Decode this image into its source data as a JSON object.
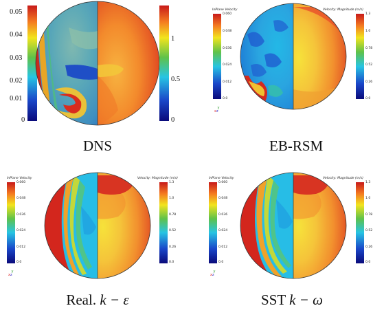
{
  "panels": [
    {
      "id": "dns",
      "caption_text": "DNS",
      "left_colorbar": {
        "title": "",
        "ticks": [
          "0.05",
          "0.04",
          "0.03",
          "0.02",
          "0.01",
          "0"
        ]
      },
      "right_colorbar": {
        "title": "",
        "ticks": [
          "1",
          "0.5",
          "0"
        ]
      }
    },
    {
      "id": "ebrsm",
      "caption_text": "EB-RSM",
      "left_colorbar": {
        "title": "InPlane Velocity",
        "ticks": [
          "0.060",
          "0.048",
          "0.036",
          "0.024",
          "0.012",
          "0.0"
        ]
      },
      "right_colorbar": {
        "title": "Velocity: Magnitude (m/s)",
        "ticks": [
          "1.3",
          "1.0",
          "0.78",
          "0.52",
          "0.26",
          "0.0"
        ]
      }
    },
    {
      "id": "realke",
      "caption_text": "Real.",
      "caption_math": "k − ε",
      "left_colorbar": {
        "title": "InPlane Velocity",
        "ticks": [
          "0.060",
          "0.048",
          "0.036",
          "0.024",
          "0.012",
          "0.0"
        ]
      },
      "right_colorbar": {
        "title": "Velocity: Magnitude (m/s)",
        "ticks": [
          "1.3",
          "1.0",
          "0.78",
          "0.52",
          "0.26",
          "0.0"
        ]
      }
    },
    {
      "id": "sstkw",
      "caption_text": "SST",
      "caption_math": "k − ω",
      "left_colorbar": {
        "title": "InPlane Velocity",
        "ticks": [
          "0.060",
          "0.048",
          "0.036",
          "0.024",
          "0.012",
          "0.0"
        ]
      },
      "right_colorbar": {
        "title": "Velocity: Magnitude (m/s)",
        "ticks": [
          "1.3",
          "1.0",
          "0.78",
          "0.52",
          "0.26",
          "0.0"
        ]
      }
    }
  ],
  "axes_triad": {
    "y": "y",
    "x": "x",
    "z": "z"
  },
  "colors": {
    "red": "#d7261e",
    "orange": "#f47a20",
    "yellow": "#f2e41e",
    "green": "#5fc24a",
    "cyan": "#27c4e3",
    "blue": "#1a47c9",
    "dark_blue": "#141e8a"
  }
}
